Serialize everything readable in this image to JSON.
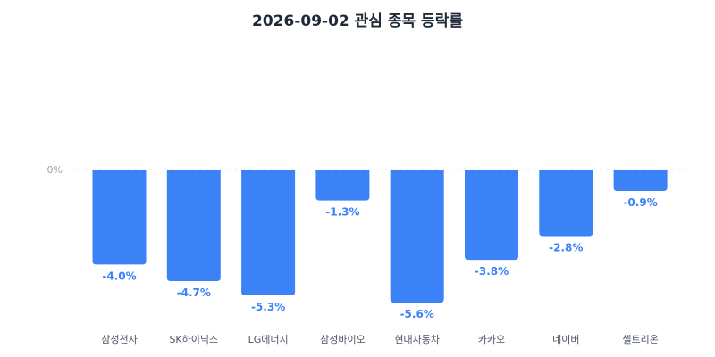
{
  "chart_data": {
    "type": "bar",
    "title": "2026-09-02 관심 종목 등락률",
    "categories": [
      "삼성전자",
      "SK하이닉스",
      "LG에너지",
      "삼성바이오",
      "현대자동차",
      "카카오",
      "네이버",
      "셀트리온"
    ],
    "values": [
      -4.0,
      -4.7,
      -5.3,
      -1.3,
      -5.6,
      -3.8,
      -2.8,
      -0.9
    ],
    "value_labels": [
      "-4.0%",
      "-4.7%",
      "-5.3%",
      "-1.3%",
      "-5.6%",
      "-3.8%",
      "-2.8%",
      "-0.9%"
    ],
    "zero_label": "0%",
    "ylim": [
      -5.6,
      0
    ],
    "grid": false,
    "zero_line": "dashed",
    "bar_color": "#3b82f6",
    "label_color": "#3b82f6"
  }
}
